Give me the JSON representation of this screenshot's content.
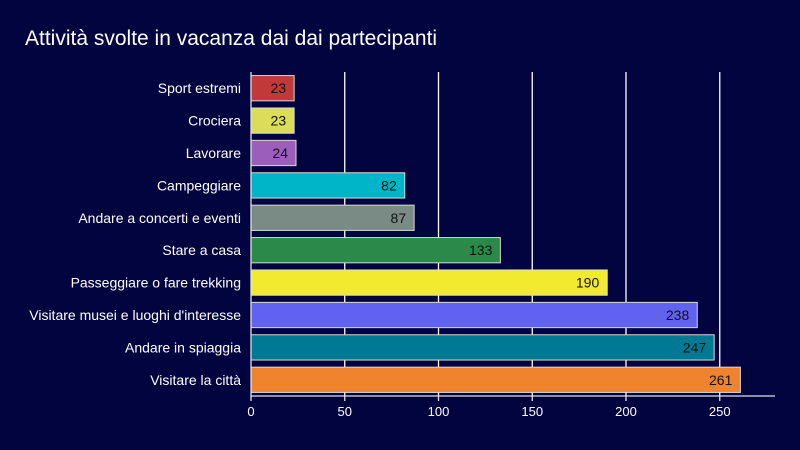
{
  "chart_data": {
    "type": "bar",
    "orientation": "horizontal",
    "title": "Attività svolte in vacanza dai dai partecipanti",
    "xlabel": "",
    "ylabel": "",
    "categories": [
      "Sport estremi",
      "Crociera",
      "Lavorare",
      "Campeggiare",
      "Andare a concerti e eventi",
      "Stare a casa",
      "Passeggiare o fare trekking",
      "Visitare musei e luoghi d'interesse",
      "Andare in spiaggia",
      "Visitare la città"
    ],
    "values": [
      23,
      23,
      24,
      82,
      87,
      133,
      190,
      238,
      247,
      261
    ],
    "colors": [
      "#c13a3a",
      "#dcdc5a",
      "#9b5fbb",
      "#00b5c8",
      "#7a8b86",
      "#2b8a4a",
      "#f2ea2e",
      "#6262f2",
      "#007a94",
      "#f0842e"
    ],
    "xlim": [
      0,
      280
    ],
    "xticks": [
      0,
      50,
      100,
      150,
      200,
      250
    ],
    "grid": true,
    "legend": "none"
  }
}
